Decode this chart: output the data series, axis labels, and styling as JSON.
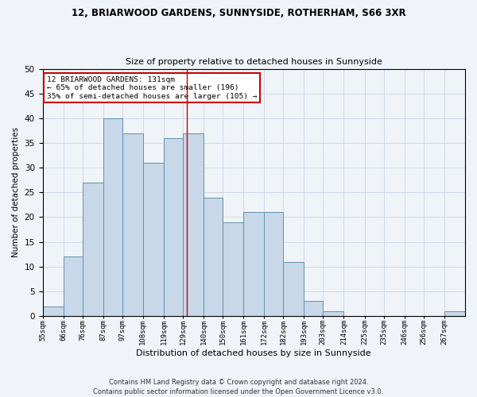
{
  "title1": "12, BRIARWOOD GARDENS, SUNNYSIDE, ROTHERHAM, S66 3XR",
  "title2": "Size of property relative to detached houses in Sunnyside",
  "xlabel": "Distribution of detached houses by size in Sunnyside",
  "ylabel": "Number of detached properties",
  "footnote": "Contains HM Land Registry data © Crown copyright and database right 2024.\nContains public sector information licensed under the Open Government Licence v3.0.",
  "bin_labels": [
    "55sqm",
    "66sqm",
    "76sqm",
    "87sqm",
    "97sqm",
    "108sqm",
    "119sqm",
    "129sqm",
    "140sqm",
    "150sqm",
    "161sqm",
    "172sqm",
    "182sqm",
    "193sqm",
    "203sqm",
    "214sqm",
    "225sqm",
    "235sqm",
    "246sqm",
    "256sqm",
    "267sqm"
  ],
  "bin_edges": [
    55,
    66,
    76,
    87,
    97,
    108,
    119,
    129,
    140,
    150,
    161,
    172,
    182,
    193,
    203,
    214,
    225,
    235,
    246,
    256,
    267,
    278
  ],
  "values": [
    2,
    12,
    27,
    40,
    37,
    31,
    36,
    37,
    24,
    19,
    21,
    21,
    11,
    3,
    1,
    0,
    0,
    0,
    0,
    0,
    1
  ],
  "bar_color": "#c8d8e8",
  "bar_edge_color": "#6090b0",
  "property_size": 131,
  "red_line_color": "#cc0000",
  "annotation_line1": "12 BRIARWOOD GARDENS: 131sqm",
  "annotation_line2": "← 65% of detached houses are smaller (196)",
  "annotation_line3": "35% of semi-detached houses are larger (105) →",
  "annotation_box_color": "#ffffff",
  "annotation_border_color": "#cc0000",
  "ylim": [
    0,
    50
  ],
  "yticks": [
    0,
    5,
    10,
    15,
    20,
    25,
    30,
    35,
    40,
    45,
    50
  ],
  "grid_color": "#d0d8e8",
  "bg_color": "#f0f4f8"
}
